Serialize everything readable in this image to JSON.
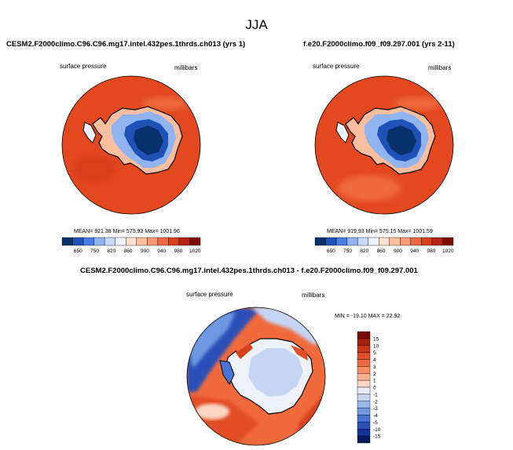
{
  "page": {
    "title": "JJA"
  },
  "panels": {
    "left": {
      "title": "CESM2.F2000climo.C96.C96.mg17.intel.432pes.1thrds.ch013 (yrs 1)",
      "variable": "surface pressure",
      "units": "millibars",
      "stats": "MEAN= 921.38  Min= 575.93  Max= 1001.96"
    },
    "right": {
      "title": "f.e20.F2000climo.f09_f09.297.001 (yrs 2-11)",
      "variable": "surface pressure",
      "units": "millibars",
      "stats": "MEAN= 919.93  Min= 575.15  Max= 1001.59"
    },
    "diff": {
      "title": "CESM2.F2000climo.C96.C96.mg17.intel.432pes.1thrds.ch013 - f.e20.F2000climo.f09_f09.297.001",
      "variable": "surface pressure",
      "units": "millibars",
      "stats": "MIN = -19.10 MAX =  22.92"
    }
  },
  "colorbars": {
    "absolute": {
      "labels": [
        "650",
        "750",
        "820",
        "860",
        "900",
        "940",
        "980",
        "1020"
      ],
      "colors": [
        "#08306b",
        "#1f52b8",
        "#4a7ee0",
        "#8fb4ef",
        "#c8dbf8",
        "#eef3fb",
        "#fde1d2",
        "#fbbfa0",
        "#f89a74",
        "#f0683f",
        "#d8401c",
        "#b02612",
        "#7a0b05"
      ]
    },
    "difference": {
      "labels": [
        "15",
        "10",
        "5",
        "4",
        "3",
        "2",
        "1",
        "0",
        "-1",
        "-2",
        "-3",
        "-4",
        "-5",
        "-10",
        "-15"
      ],
      "colors": [
        "#7a0b05",
        "#a3200f",
        "#c83518",
        "#e24e27",
        "#f06a3c",
        "#f78c5f",
        "#fbb38f",
        "#fdd7c2",
        "#e6edf9",
        "#c4d6f4",
        "#98b8ec",
        "#6f97e2",
        "#4874d6",
        "#2a50b8",
        "#123499",
        "#06195f"
      ]
    }
  }
}
